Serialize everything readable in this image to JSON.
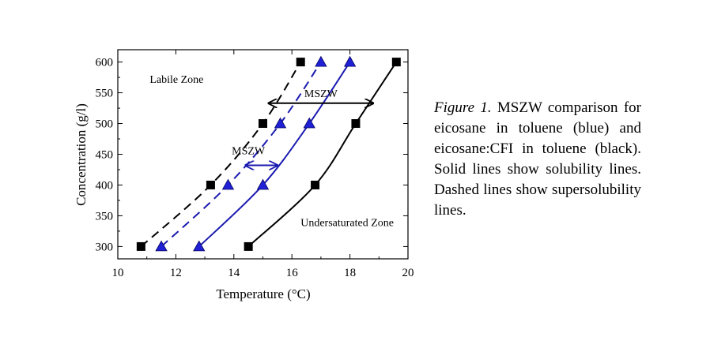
{
  "chart_data": {
    "type": "scatter",
    "xlabel": "Temperature (°C)",
    "ylabel": "Concentration (g/l)",
    "xlim": [
      10,
      20
    ],
    "ylim": [
      280,
      620
    ],
    "xticks": [
      10,
      12,
      14,
      16,
      18,
      20
    ],
    "yticks": [
      300,
      350,
      400,
      450,
      500,
      550,
      600
    ],
    "grid": false,
    "series": [
      {
        "color": "#000000",
        "marker": "square",
        "line": "dashed",
        "points": [
          {
            "x": 10.8,
            "y": 300
          },
          {
            "x": 13.2,
            "y": 400
          },
          {
            "x": 15.0,
            "y": 500
          },
          {
            "x": 16.3,
            "y": 600
          }
        ]
      },
      {
        "color": "#1a1ab0",
        "marker": "triangle",
        "line": "dashed",
        "points": [
          {
            "x": 11.5,
            "y": 300
          },
          {
            "x": 13.8,
            "y": 400
          },
          {
            "x": 15.6,
            "y": 500
          },
          {
            "x": 17.0,
            "y": 600
          }
        ]
      },
      {
        "color": "#1a1ab0",
        "marker": "triangle",
        "line": "solid",
        "points": [
          {
            "x": 12.8,
            "y": 300
          },
          {
            "x": 15.0,
            "y": 400
          },
          {
            "x": 16.6,
            "y": 500
          },
          {
            "x": 18.0,
            "y": 600
          }
        ]
      },
      {
        "color": "#000000",
        "marker": "square",
        "line": "solid",
        "points": [
          {
            "x": 14.5,
            "y": 300
          },
          {
            "x": 16.8,
            "y": 400
          },
          {
            "x": 18.2,
            "y": 500
          },
          {
            "x": 19.6,
            "y": 600
          }
        ]
      }
    ],
    "annotations": [
      {
        "text": "Labile Zone",
        "x": 11.1,
        "y": 566
      },
      {
        "text": "Undersaturated Zone",
        "x": 16.3,
        "y": 333
      },
      {
        "text": "MSZW",
        "x": 17.0,
        "y": 543,
        "arrow": {
          "x1": 15.2,
          "x2": 18.8,
          "y": 533
        },
        "color": "#000000"
      },
      {
        "text": "MSZW",
        "x": 14.5,
        "y": 450,
        "arrow": {
          "x1": 14.4,
          "x2": 15.5,
          "y": 432
        },
        "color": "#1a1ab0"
      }
    ]
  },
  "caption": {
    "figure_label": "Figure 1.",
    "text": " MSZW comparison for eicosane in toluene (blue) and eicosane:CFI in toluene (black). Solid lines show solubility lines. Dashed lines show supersolubility lines."
  }
}
